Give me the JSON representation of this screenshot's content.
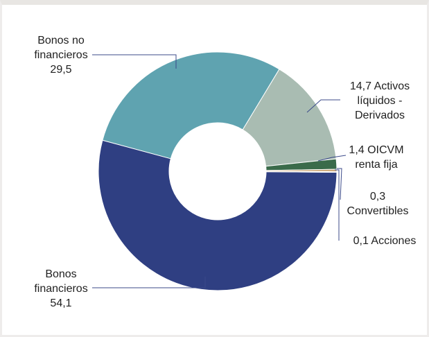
{
  "chart_data": {
    "type": "pie",
    "donut": true,
    "title": "",
    "slices": [
      {
        "label_lines": [
          "Bonos",
          "financieros",
          "54,1"
        ],
        "value": 54.1,
        "color": "#2f3f82"
      },
      {
        "label_lines": [
          "Bonos no",
          "financieros",
          "29,5"
        ],
        "value": 29.5,
        "color": "#5fa3b0"
      },
      {
        "label_lines": [
          "14,7  Activos",
          "líquidos -",
          "Derivados"
        ],
        "value": 14.7,
        "color": "#a9bcb2"
      },
      {
        "label_lines": [
          "1,4  OICVM",
          "renta fija"
        ],
        "value": 1.4,
        "color": "#3a6b4a"
      },
      {
        "label_lines": [
          "0,3",
          "Convertibles"
        ],
        "value": 0.3,
        "color": "#c8a06a"
      },
      {
        "label_lines": [
          "0,1  Acciones"
        ],
        "value": 0.1,
        "color": "#9a4a4a"
      }
    ]
  }
}
